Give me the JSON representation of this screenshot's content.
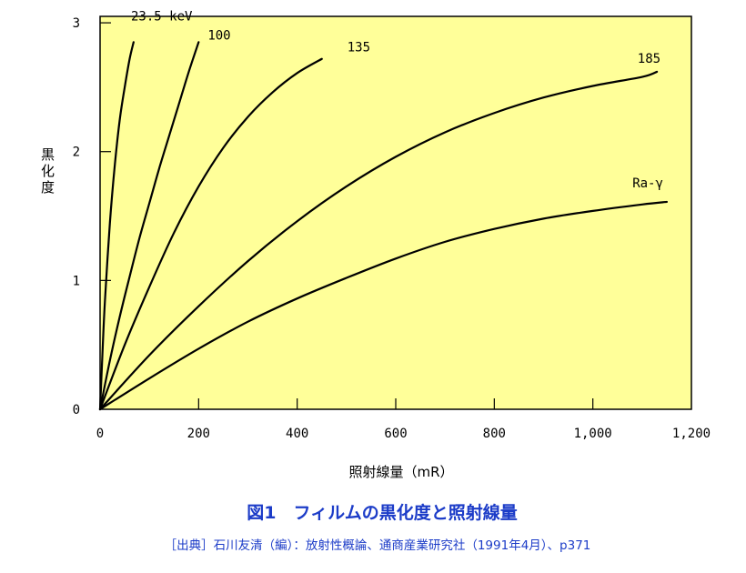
{
  "colors": {
    "plot_background": "#ffff99",
    "plot_border": "#000000",
    "curve": "#000000",
    "caption": "#1c3cc8"
  },
  "caption": {
    "title": "図1　フィルムの黒化度と照射線量",
    "source": "［出典］石川友清（編）：放射性概論、通商産業研究社（1991年4月）、p371"
  },
  "chart_data": {
    "type": "line",
    "title": "",
    "xlabel": "照射線量（mR）",
    "ylabel": "黒化度",
    "xlim": [
      0,
      1200
    ],
    "ylim": [
      0,
      3.05
    ],
    "grid": false,
    "x_tick_values": [
      0,
      200,
      400,
      600,
      800,
      1000,
      1200
    ],
    "x_tick_labels": [
      "0",
      "200",
      "400",
      "600",
      "800",
      "1,000",
      "1,200"
    ],
    "y_tick_values": [
      0,
      1,
      2,
      3
    ],
    "y_tick_labels": [
      "0",
      "1",
      "2",
      "3"
    ],
    "series": [
      {
        "name": "23.5 keV",
        "x": [
          0,
          5,
          10,
          20,
          30,
          40,
          50,
          60,
          68
        ],
        "y": [
          0,
          0.45,
          0.85,
          1.45,
          1.9,
          2.25,
          2.5,
          2.72,
          2.85
        ]
      },
      {
        "name": "100",
        "x": [
          0,
          20,
          40,
          60,
          80,
          100,
          120,
          140,
          160,
          180,
          200
        ],
        "y": [
          0,
          0.38,
          0.72,
          1.03,
          1.33,
          1.6,
          1.87,
          2.12,
          2.37,
          2.62,
          2.85
        ]
      },
      {
        "name": "135",
        "x": [
          0,
          50,
          100,
          150,
          200,
          250,
          300,
          350,
          400,
          450
        ],
        "y": [
          0,
          0.5,
          0.95,
          1.37,
          1.73,
          2.03,
          2.27,
          2.46,
          2.61,
          2.72
        ]
      },
      {
        "name": "185",
        "x": [
          0,
          100,
          200,
          300,
          400,
          500,
          600,
          700,
          800,
          900,
          1000,
          1100,
          1130
        ],
        "y": [
          0,
          0.42,
          0.8,
          1.15,
          1.46,
          1.73,
          1.96,
          2.15,
          2.3,
          2.42,
          2.51,
          2.58,
          2.62
        ]
      },
      {
        "name": "Ra-γ",
        "x": [
          0,
          100,
          200,
          300,
          400,
          500,
          600,
          700,
          800,
          900,
          1000,
          1100,
          1150
        ],
        "y": [
          0,
          0.24,
          0.47,
          0.68,
          0.86,
          1.02,
          1.17,
          1.3,
          1.4,
          1.48,
          1.54,
          1.59,
          1.61
        ]
      }
    ]
  }
}
